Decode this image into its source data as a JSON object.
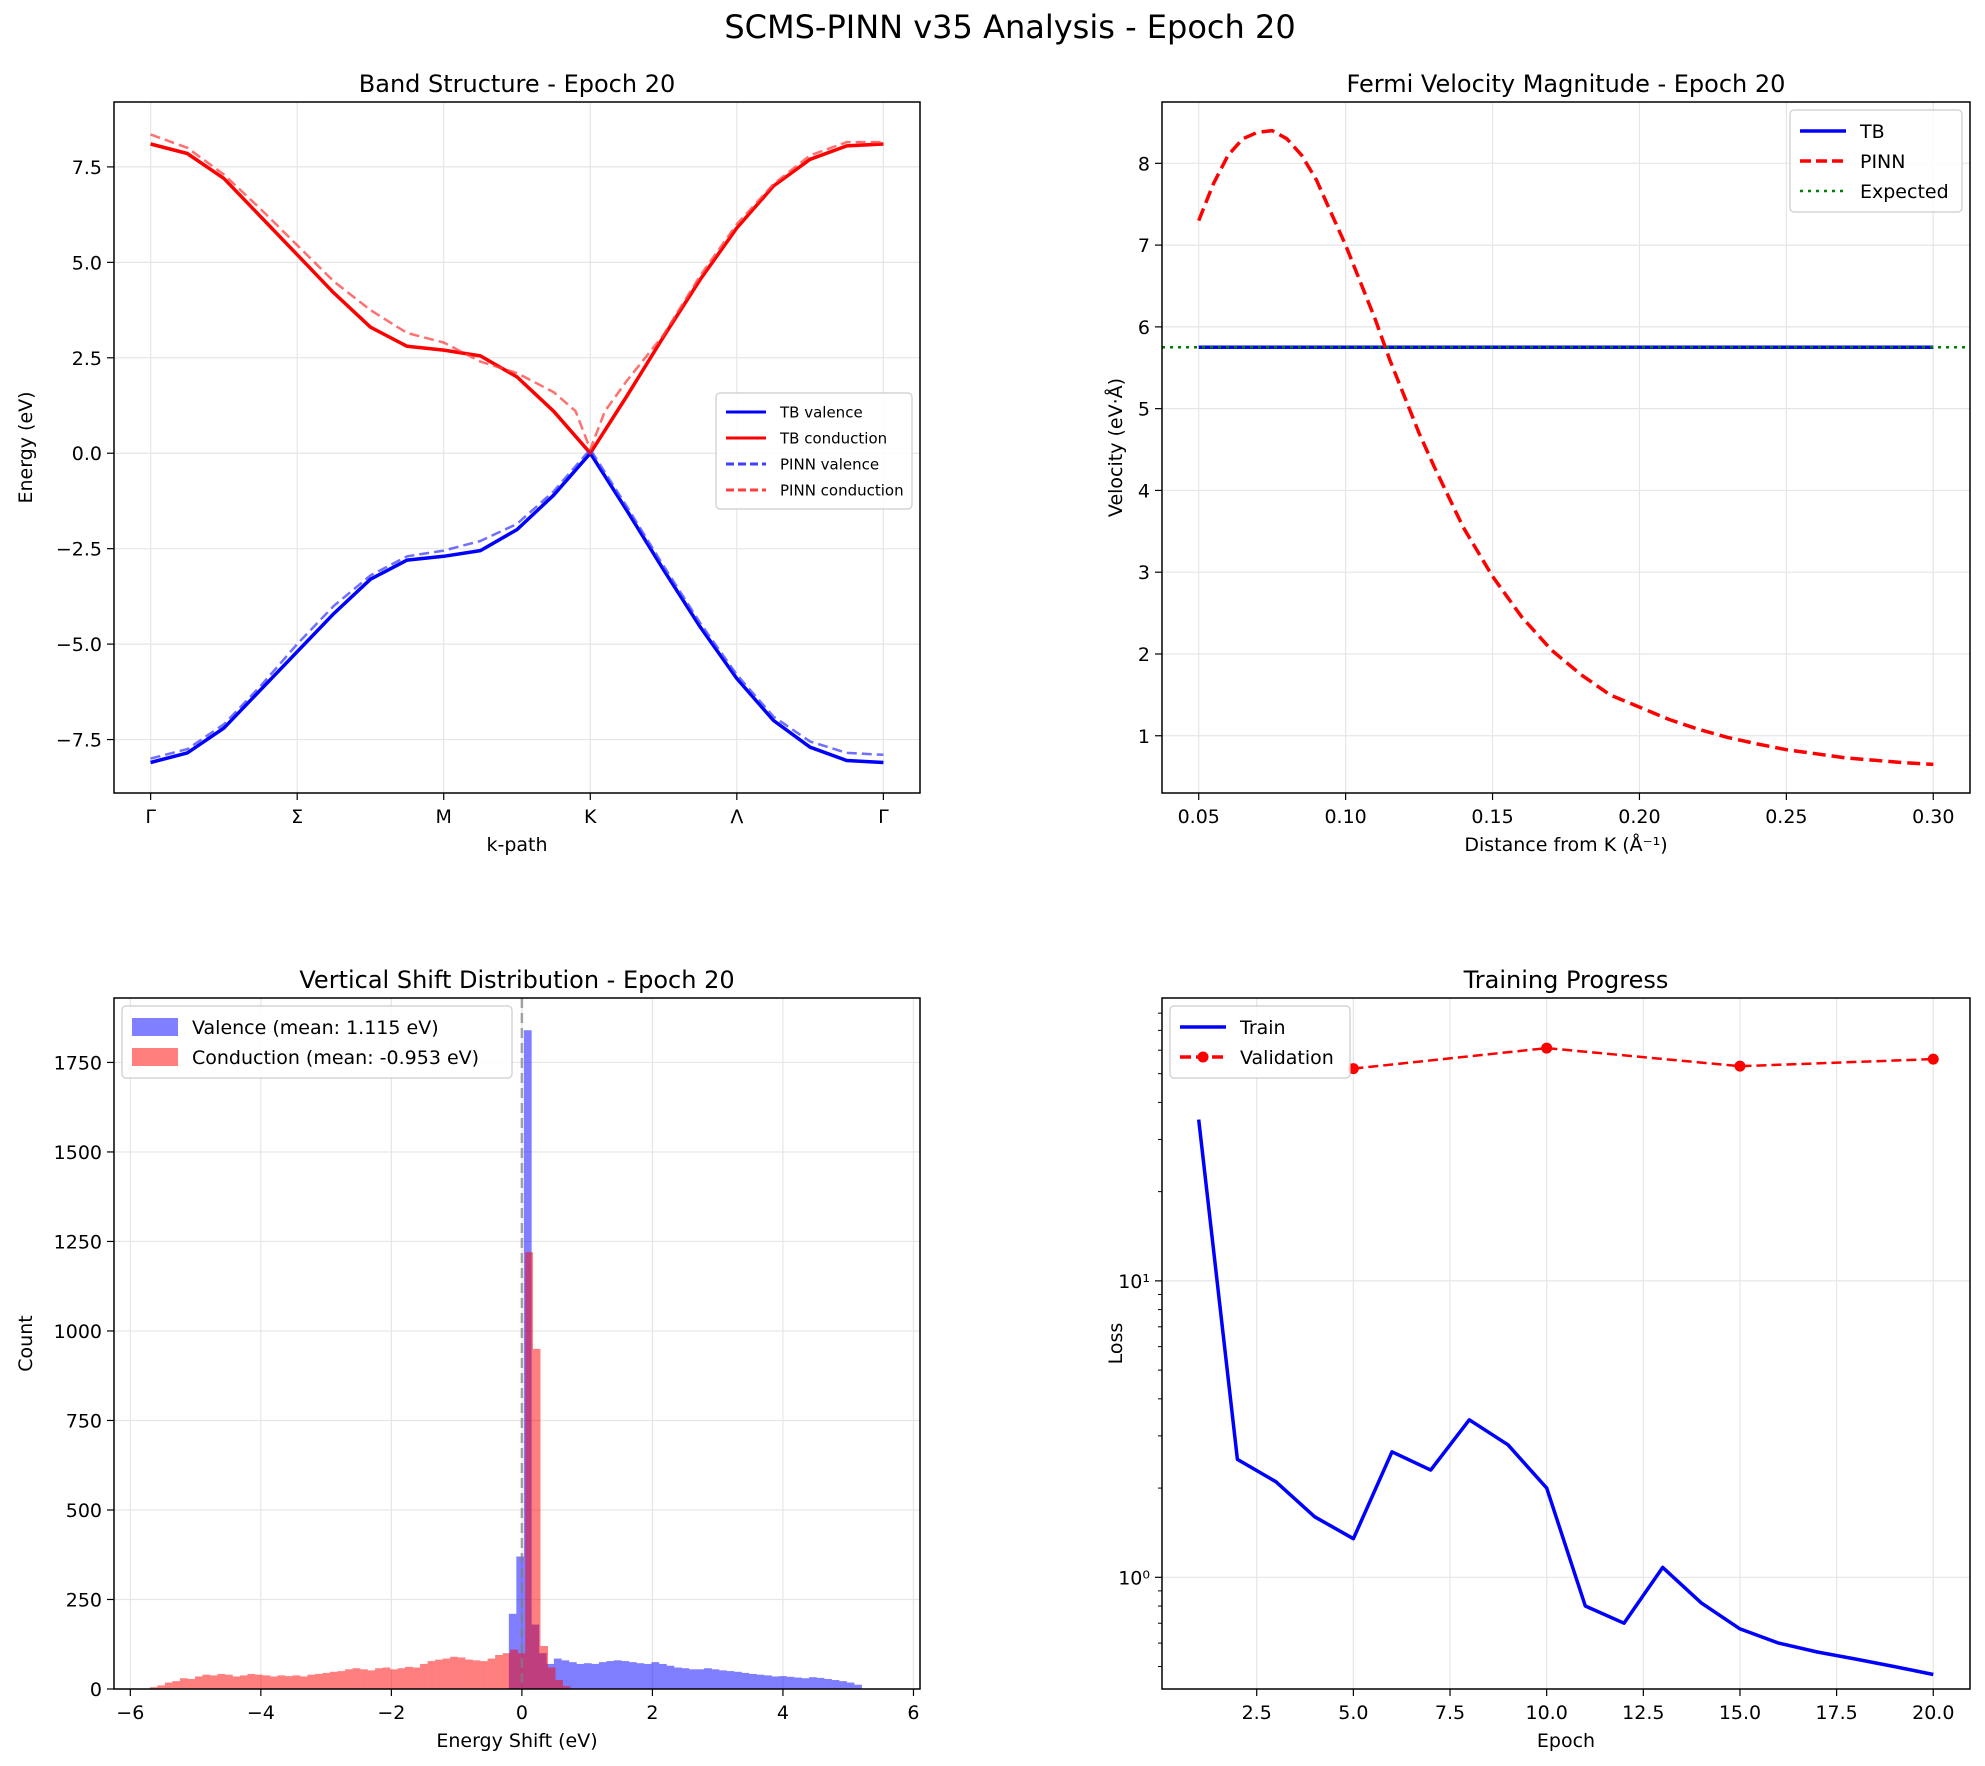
{
  "suptitle": "SCMS-PINN v35 Analysis - Epoch 20",
  "colors": {
    "blue": "#0000ff",
    "red": "#ff0000",
    "green": "#008000",
    "grid": "#e6e6e6"
  },
  "chart_data": [
    {
      "id": "band",
      "type": "line",
      "title": "Band Structure - Epoch 20",
      "xlabel": "k-path",
      "ylabel": "Energy (eV)",
      "xlim": [
        -0.25,
        5.25
      ],
      "ylim": [
        -8.9,
        9.2
      ],
      "xticks": [
        0,
        1,
        2,
        3,
        4,
        5
      ],
      "xticklabels": [
        "Γ",
        "Σ",
        "M",
        "K",
        "Λ",
        "Γ"
      ],
      "yticks": [
        -7.5,
        -5.0,
        -2.5,
        0.0,
        2.5,
        5.0,
        7.5
      ],
      "yticklabels": [
        "−7.5",
        "−5.0",
        "−2.5",
        "0.0",
        "2.5",
        "5.0",
        "7.5"
      ],
      "legend_position": "center-right",
      "series": [
        {
          "name": "TB valence",
          "style": "solid",
          "color": "#0000ff",
          "x": [
            0,
            0.25,
            0.5,
            0.75,
            1.0,
            1.25,
            1.5,
            1.75,
            2.0,
            2.25,
            2.5,
            2.75,
            3.0,
            3.25,
            3.5,
            3.75,
            4.0,
            4.25,
            4.5,
            4.75,
            5.0
          ],
          "y": [
            -8.1,
            -7.85,
            -7.2,
            -6.2,
            -5.2,
            -4.2,
            -3.3,
            -2.8,
            -2.7,
            -2.55,
            -2.0,
            -1.1,
            0.0,
            -1.5,
            -3.05,
            -4.55,
            -5.9,
            -7.0,
            -7.7,
            -8.05,
            -8.1
          ]
        },
        {
          "name": "TB conduction",
          "style": "solid",
          "color": "#ff0000",
          "x": [
            0,
            0.25,
            0.5,
            0.75,
            1.0,
            1.25,
            1.5,
            1.75,
            2.0,
            2.25,
            2.5,
            2.75,
            3.0,
            3.25,
            3.5,
            3.75,
            4.0,
            4.25,
            4.5,
            4.75,
            5.0
          ],
          "y": [
            8.1,
            7.85,
            7.2,
            6.2,
            5.2,
            4.2,
            3.3,
            2.8,
            2.7,
            2.55,
            2.0,
            1.1,
            0.0,
            1.5,
            3.05,
            4.55,
            5.9,
            7.0,
            7.7,
            8.05,
            8.1
          ]
        },
        {
          "name": "PINN valence",
          "style": "dashed",
          "color": "#4040ff",
          "x": [
            0,
            0.25,
            0.5,
            0.75,
            1.0,
            1.25,
            1.5,
            1.75,
            2.0,
            2.25,
            2.5,
            2.75,
            3.0,
            3.25,
            3.5,
            3.75,
            4.0,
            4.25,
            4.5,
            4.75,
            5.0
          ],
          "y": [
            -8.0,
            -7.75,
            -7.1,
            -6.1,
            -5.0,
            -4.0,
            -3.2,
            -2.7,
            -2.55,
            -2.3,
            -1.85,
            -1.0,
            0.1,
            -1.4,
            -2.95,
            -4.45,
            -5.8,
            -6.9,
            -7.55,
            -7.85,
            -7.9
          ]
        },
        {
          "name": "PINN conduction",
          "style": "dashed",
          "color": "#ff4040",
          "x": [
            0,
            0.25,
            0.5,
            0.75,
            1.0,
            1.25,
            1.5,
            1.75,
            2.0,
            2.25,
            2.5,
            2.75,
            2.9,
            3.0,
            3.1,
            3.25,
            3.5,
            3.75,
            4.0,
            4.25,
            4.5,
            4.75,
            5.0
          ],
          "y": [
            8.35,
            8.0,
            7.3,
            6.4,
            5.45,
            4.5,
            3.75,
            3.15,
            2.9,
            2.4,
            2.1,
            1.6,
            1.1,
            0.1,
            1.1,
            1.9,
            3.1,
            4.65,
            6.0,
            7.05,
            7.8,
            8.15,
            8.15
          ]
        }
      ]
    },
    {
      "id": "fermi",
      "type": "line",
      "title": "Fermi Velocity Magnitude - Epoch 20",
      "xlabel": "Distance from K (Å⁻¹)",
      "ylabel": "Velocity (eV·Å)",
      "xlim": [
        0.0375,
        0.3125
      ],
      "ylim": [
        0.3,
        8.75
      ],
      "xticks": [
        0.05,
        0.1,
        0.15,
        0.2,
        0.25,
        0.3
      ],
      "xticklabels": [
        "0.05",
        "0.10",
        "0.15",
        "0.20",
        "0.25",
        "0.30"
      ],
      "yticks": [
        1,
        2,
        3,
        4,
        5,
        6,
        7,
        8
      ],
      "yticklabels": [
        "1",
        "2",
        "3",
        "4",
        "5",
        "6",
        "7",
        "8"
      ],
      "legend_position": "top-right",
      "expected": 5.75,
      "series": [
        {
          "name": "TB",
          "style": "solid",
          "color": "#0000ff",
          "x": [
            0.05,
            0.3
          ],
          "y": [
            5.75,
            5.75
          ]
        },
        {
          "name": "PINN",
          "style": "dashed",
          "color": "#ff0000",
          "x": [
            0.05,
            0.055,
            0.06,
            0.065,
            0.07,
            0.075,
            0.08,
            0.085,
            0.09,
            0.095,
            0.1,
            0.105,
            0.11,
            0.115,
            0.12,
            0.125,
            0.13,
            0.14,
            0.15,
            0.16,
            0.17,
            0.18,
            0.19,
            0.2,
            0.21,
            0.22,
            0.23,
            0.24,
            0.25,
            0.26,
            0.27,
            0.28,
            0.29,
            0.3
          ],
          "y": [
            7.3,
            7.75,
            8.1,
            8.3,
            8.38,
            8.4,
            8.3,
            8.1,
            7.8,
            7.4,
            7.0,
            6.55,
            6.1,
            5.6,
            5.15,
            4.7,
            4.3,
            3.55,
            2.95,
            2.45,
            2.05,
            1.75,
            1.5,
            1.35,
            1.2,
            1.08,
            0.98,
            0.9,
            0.83,
            0.78,
            0.73,
            0.7,
            0.67,
            0.65
          ]
        },
        {
          "name": "Expected",
          "style": "dotted",
          "color": "#008000",
          "x": [
            0.0375,
            0.3125
          ],
          "y": [
            5.75,
            5.75
          ]
        }
      ]
    },
    {
      "id": "hist",
      "type": "bar",
      "title": "Vertical Shift Distribution - Epoch 20",
      "xlabel": "Energy Shift (eV)",
      "ylabel": "Count",
      "xlim": [
        -6.25,
        6.1
      ],
      "ylim": [
        0,
        1930
      ],
      "xticks": [
        -6,
        -4,
        -2,
        0,
        2,
        4,
        6
      ],
      "xticklabels": [
        "−6",
        "−4",
        "−2",
        "0",
        "2",
        "4",
        "6"
      ],
      "yticks": [
        0,
        250,
        500,
        750,
        1000,
        1250,
        1500,
        1750
      ],
      "yticklabels": [
        "0",
        "250",
        "500",
        "750",
        "1000",
        "1250",
        "1500",
        "1750"
      ],
      "legend_position": "top-left",
      "bin_width": 0.115,
      "series": [
        {
          "name": "Valence (mean: 1.115 eV)",
          "color": "#0000ff",
          "alpha": 0.5,
          "bins_start": -0.2,
          "counts": [
            210,
            370,
            1840,
            180,
            100,
            70,
            85,
            80,
            75,
            70,
            72,
            70,
            75,
            78,
            80,
            78,
            75,
            72,
            70,
            75,
            70,
            65,
            60,
            58,
            55,
            55,
            58,
            55,
            52,
            50,
            48,
            45,
            42,
            40,
            38,
            35,
            36,
            34,
            32,
            30,
            33,
            31,
            28,
            25,
            22,
            18,
            12
          ]
        },
        {
          "name": "Conduction (mean: -0.953 eV)",
          "color": "#ff0000",
          "alpha": 0.5,
          "bins_start": -5.7,
          "counts": [
            5,
            10,
            18,
            22,
            30,
            28,
            35,
            40,
            38,
            42,
            40,
            35,
            38,
            42,
            40,
            38,
            35,
            38,
            36,
            38,
            35,
            40,
            42,
            45,
            48,
            50,
            55,
            58,
            55,
            52,
            58,
            60,
            55,
            58,
            62,
            60,
            70,
            78,
            82,
            85,
            90,
            88,
            82,
            80,
            78,
            85,
            95,
            100,
            110,
            100,
            1220,
            950,
            120,
            60,
            25,
            8
          ]
        }
      ]
    },
    {
      "id": "training",
      "type": "line",
      "title": "Training Progress",
      "xlabel": "Epoch",
      "ylabel": "Loss",
      "yscale": "log",
      "xlim": [
        0.05,
        20.95
      ],
      "ylim": [
        0.42,
        90
      ],
      "xticks": [
        2.5,
        5.0,
        7.5,
        10.0,
        12.5,
        15.0,
        17.5,
        20.0
      ],
      "xticklabels": [
        "2.5",
        "5.0",
        "7.5",
        "10.0",
        "12.5",
        "15.0",
        "17.5",
        "20.0"
      ],
      "yticks": [
        1,
        10
      ],
      "yticklabels": [
        "10⁰",
        "10¹"
      ],
      "legend_position": "top-left",
      "series": [
        {
          "name": "Train",
          "style": "solid",
          "color": "#0000ff",
          "x": [
            1,
            2,
            3,
            4,
            5,
            6,
            7,
            8,
            9,
            10,
            11,
            12,
            13,
            14,
            15,
            16,
            17,
            18,
            19,
            20
          ],
          "y": [
            35,
            2.5,
            2.1,
            1.6,
            1.35,
            2.65,
            2.3,
            3.4,
            2.8,
            2.0,
            0.8,
            0.7,
            1.08,
            0.82,
            0.67,
            0.6,
            0.56,
            0.53,
            0.5,
            0.47
          ]
        },
        {
          "name": "Validation",
          "style": "dashed-marker",
          "color": "#ff0000",
          "x": [
            5,
            10,
            15,
            20
          ],
          "y": [
            52,
            61,
            53,
            56
          ]
        }
      ]
    }
  ]
}
